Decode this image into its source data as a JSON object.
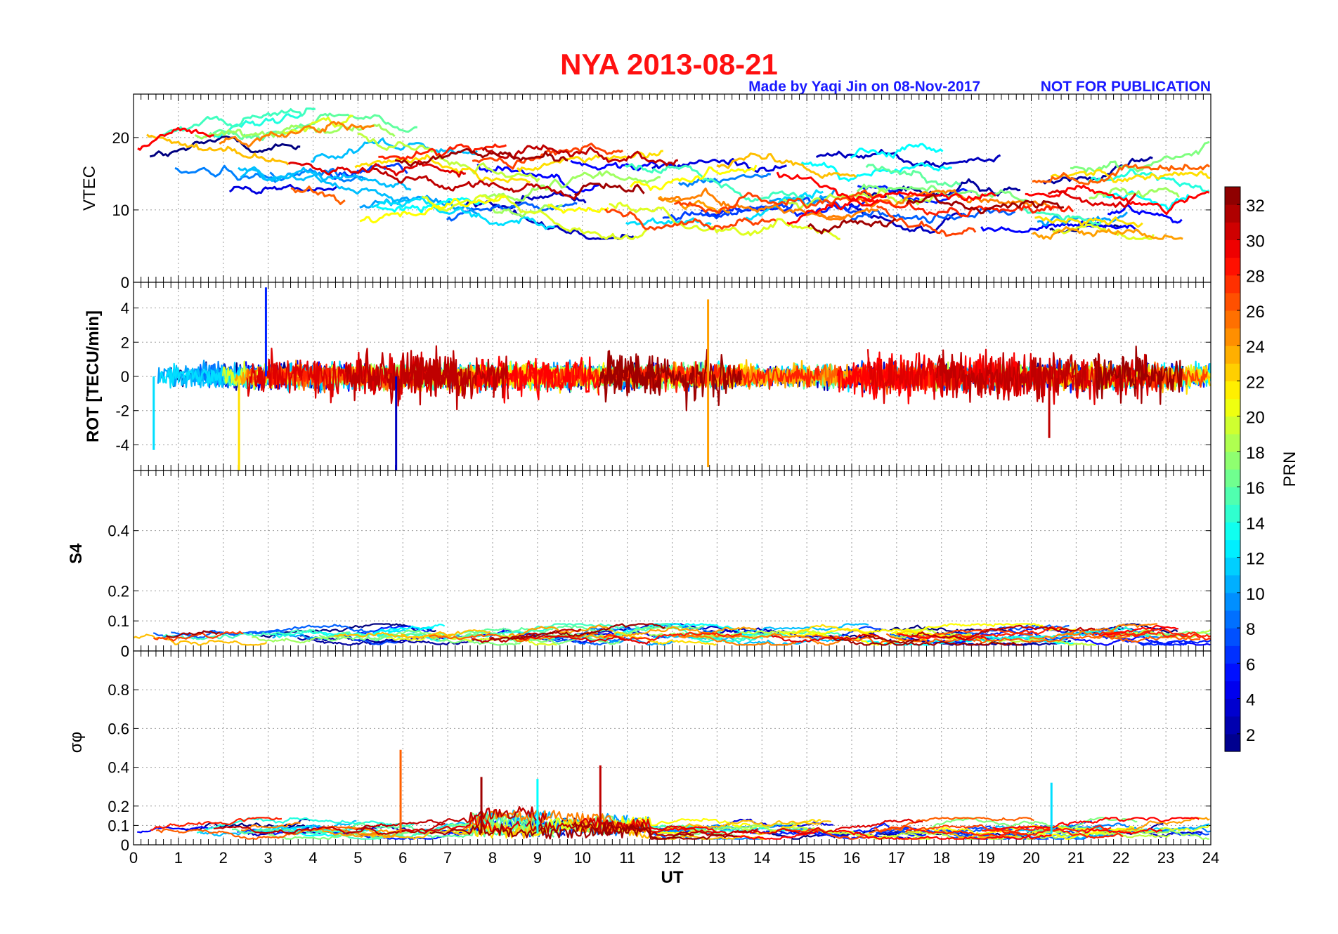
{
  "header": {
    "title": "NYA   2013-08-21",
    "credit": "Made by Yaqi Jin on 08-Nov-2017",
    "notice": "NOT FOR PUBLICATION",
    "title_color": "#ff1010",
    "credit_color": "#1a1aff"
  },
  "chart_data": [
    {
      "type": "line",
      "panel": "vtec",
      "ylabel": "VTEC",
      "ylim": [
        0,
        26
      ],
      "yticks": [
        0,
        10,
        20
      ],
      "xlim": [
        0,
        24
      ],
      "grid": true,
      "series_summary": "GPS satellites PRN 1-32, VTEC mostly between 7 and 25 TECU"
    },
    {
      "type": "line",
      "panel": "rot",
      "ylabel": "ROT [TECU/min]",
      "ylim": [
        -5.5,
        5.5
      ],
      "yticks": [
        -4,
        -2,
        0,
        2,
        4
      ],
      "xlim": [
        0,
        24
      ],
      "grid": true,
      "notable_spikes": [
        {
          "x": 2.95,
          "y": 5.2,
          "prn": 6
        },
        {
          "x": 5.85,
          "y": -5.5,
          "prn": 3
        },
        {
          "x": 2.35,
          "y": -5.5,
          "prn": 22
        },
        {
          "x": 12.8,
          "y": 4.5,
          "prn": 24
        },
        {
          "x": 12.8,
          "y": -5.3,
          "prn": 24
        },
        {
          "x": 0.45,
          "y": -4.3,
          "prn": 12
        },
        {
          "x": 20.4,
          "y": -3.6,
          "prn": 31
        }
      ]
    },
    {
      "type": "line",
      "panel": "s4",
      "ylabel": "S4",
      "ylim": [
        0,
        0.6
      ],
      "yticks": [
        0,
        0.1,
        0.2,
        0.4
      ],
      "xlim": [
        0,
        24
      ],
      "grid": true
    },
    {
      "type": "line",
      "panel": "sigma_phi",
      "ylabel": "σφ",
      "ylim": [
        0,
        1
      ],
      "yticks": [
        0,
        0.1,
        0.2,
        0.4,
        0.6,
        0.8
      ],
      "xlim": [
        0,
        24
      ],
      "xlabel": "UT",
      "xticks": [
        0,
        1,
        2,
        3,
        4,
        5,
        6,
        7,
        8,
        9,
        10,
        11,
        12,
        13,
        14,
        15,
        16,
        17,
        18,
        19,
        20,
        21,
        22,
        23,
        24
      ],
      "grid": true,
      "notable_spikes": [
        {
          "x": 5.95,
          "y": 0.49,
          "prn": 26
        },
        {
          "x": 10.4,
          "y": 0.41,
          "prn": 31
        },
        {
          "x": 7.75,
          "y": 0.35,
          "prn": 32
        },
        {
          "x": 9.0,
          "y": 0.34,
          "prn": 13
        },
        {
          "x": 20.45,
          "y": 0.32,
          "prn": 12
        }
      ]
    }
  ],
  "colorbar": {
    "label": "PRN",
    "min": 1,
    "max": 33,
    "ticks": [
      2,
      4,
      6,
      8,
      10,
      12,
      14,
      16,
      18,
      20,
      22,
      24,
      26,
      28,
      30,
      32
    ],
    "colormap": "jet"
  }
}
